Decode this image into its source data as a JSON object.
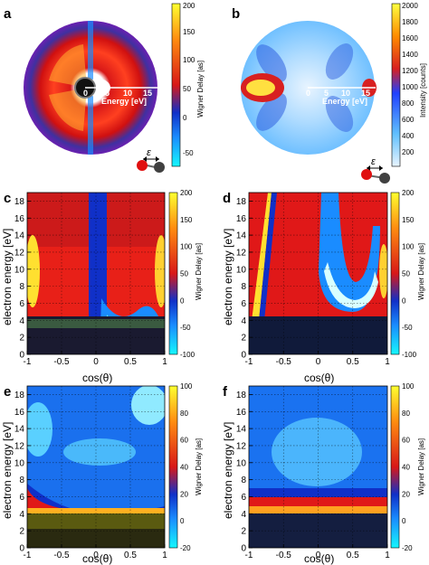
{
  "panel_labels": [
    "a",
    "b",
    "c",
    "d",
    "e",
    "f"
  ],
  "colors": {
    "delay_scale": [
      "#16f7ff",
      "#1a8cff",
      "#1030c8",
      "#d81818",
      "#ff8c10",
      "#ffff30"
    ],
    "intensity_scale": [
      "#e8f4ff",
      "#60c0ff",
      "#2040ff",
      "#d82020",
      "#ff8c00",
      "#ffff40"
    ],
    "molecule_o": "#e01010",
    "molecule_c": "#404040"
  },
  "polar_panels": [
    {
      "id": "a",
      "energy_axis": {
        "label": "Energy [eV]",
        "ticks": [
          "0",
          "5",
          "10",
          "15"
        ]
      },
      "colorbar": {
        "label": "Wigner Delay [as]",
        "ticks": [
          "200",
          "150",
          "100",
          "50",
          "0",
          "-50"
        ]
      },
      "polarization_symbol": "ε"
    },
    {
      "id": "b",
      "energy_axis": {
        "label": "Energy [eV]",
        "ticks": [
          "0",
          "5",
          "10",
          "15"
        ]
      },
      "colorbar": {
        "label": "Intensity [counts]",
        "ticks": [
          "2000",
          "1800",
          "1600",
          "1400",
          "1200",
          "1000",
          "800",
          "600",
          "400",
          "200"
        ]
      },
      "polarization_symbol": "ε"
    }
  ],
  "chart_data": [
    {
      "panel": "c",
      "type": "heatmap",
      "xlabel": "cos(θ)",
      "ylabel": "electron energy [eV]",
      "xlim": [
        -1,
        1
      ],
      "ylim": [
        0,
        19
      ],
      "xticks": [
        "-1",
        "-0.5",
        "0",
        "0.5",
        "1"
      ],
      "yticks": [
        "0",
        "2",
        "4",
        "6",
        "8",
        "10",
        "12",
        "14",
        "16",
        "18"
      ],
      "colorbar": {
        "label": "Wigner Delay [as]",
        "range": [
          -100,
          200
        ],
        "ticks": [
          "200",
          "150",
          "100",
          "50",
          "0",
          "-50",
          "-100"
        ]
      },
      "grid": true
    },
    {
      "panel": "d",
      "type": "heatmap",
      "xlabel": "cos(θ)",
      "ylabel": "electron energy [eV]",
      "xlim": [
        -1,
        1
      ],
      "ylim": [
        0,
        19
      ],
      "xticks": [
        "-1",
        "-0.5",
        "0",
        "0.5",
        "1"
      ],
      "yticks": [
        "0",
        "2",
        "4",
        "6",
        "8",
        "10",
        "12",
        "14",
        "16",
        "18"
      ],
      "colorbar": {
        "label": "Wigner Delay [as]",
        "range": [
          -100,
          200
        ],
        "ticks": [
          "200",
          "150",
          "100",
          "50",
          "0",
          "-50",
          "-100"
        ]
      },
      "grid": true
    },
    {
      "panel": "e",
      "type": "heatmap",
      "xlabel": "cos(θ)",
      "ylabel": "electron energy [eV]",
      "xlim": [
        -1,
        1
      ],
      "ylim": [
        0,
        19
      ],
      "xticks": [
        "-1",
        "-0.5",
        "0",
        "0.5",
        "1"
      ],
      "yticks": [
        "0",
        "2",
        "4",
        "6",
        "8",
        "10",
        "12",
        "14",
        "16",
        "18"
      ],
      "colorbar": {
        "label": "Wigner Delay [as]",
        "range": [
          -20,
          100
        ],
        "ticks": [
          "100",
          "80",
          "60",
          "40",
          "20",
          "0",
          "-20"
        ]
      },
      "grid": true
    },
    {
      "panel": "f",
      "type": "heatmap",
      "xlabel": "cos(θ)",
      "ylabel": "electron energy [eV]",
      "xlim": [
        -1,
        1
      ],
      "ylim": [
        0,
        19
      ],
      "xticks": [
        "-1",
        "-0.5",
        "0",
        "0.5",
        "1"
      ],
      "yticks": [
        "0",
        "2",
        "4",
        "6",
        "8",
        "10",
        "12",
        "14",
        "16",
        "18"
      ],
      "colorbar": {
        "label": "Wigner Delay [as]",
        "range": [
          -20,
          100
        ],
        "ticks": [
          "100",
          "80",
          "60",
          "40",
          "20",
          "0",
          "-20"
        ]
      },
      "grid": true
    }
  ]
}
